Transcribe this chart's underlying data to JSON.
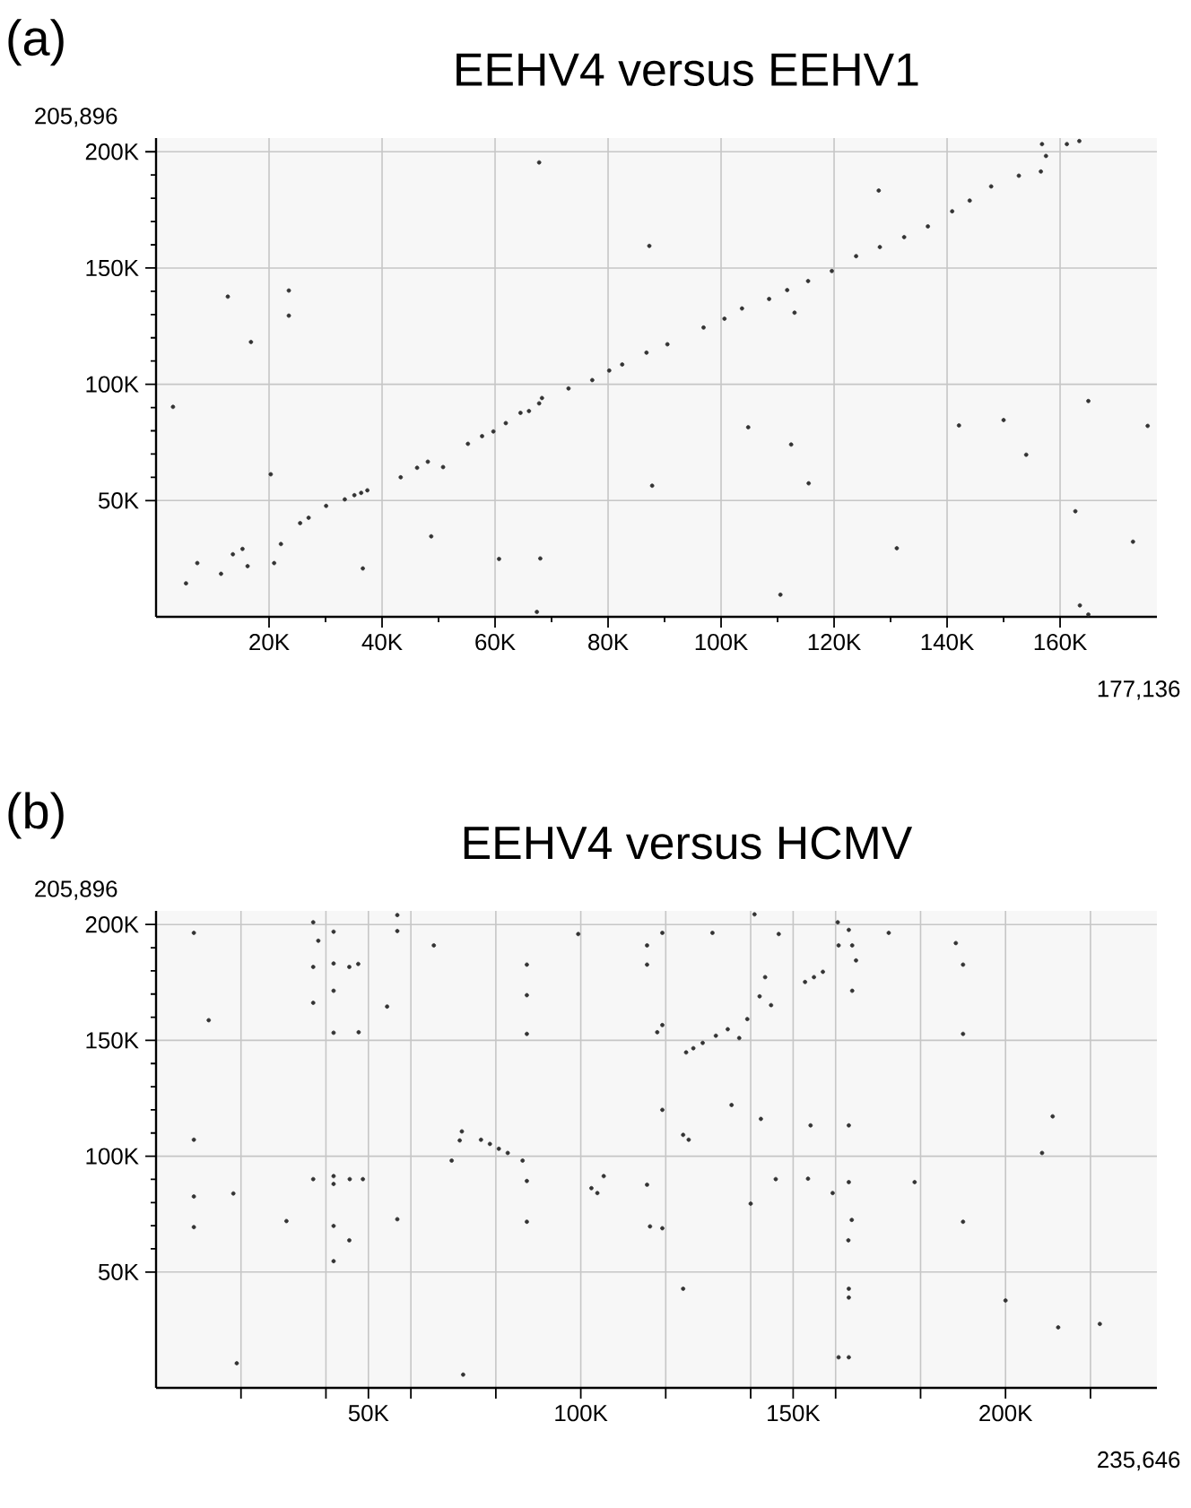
{
  "chart_data": [
    {
      "type": "scatter",
      "title": "EEHV4 versus EEHV1",
      "annotations": [
        "(a)",
        "177,136",
        "205,896"
      ],
      "color": "#333333",
      "marker": "circle",
      "grid": true,
      "xlim": [
        0,
        177136
      ],
      "ylim": [
        0,
        205896
      ],
      "xticks": [
        {
          "value": 20000,
          "label": "20K"
        },
        {
          "value": 40000,
          "label": "40K"
        },
        {
          "value": 60000,
          "label": "60K"
        },
        {
          "value": 80000,
          "label": "80K"
        },
        {
          "value": 100000,
          "label": "100K"
        },
        {
          "value": 120000,
          "label": "120K"
        },
        {
          "value": 140000,
          "label": "140K"
        },
        {
          "value": 160000,
          "label": "160K"
        }
      ],
      "yticks": [
        {
          "value": 50000,
          "label": "50K"
        },
        {
          "value": 100000,
          "label": "100K"
        },
        {
          "value": 150000,
          "label": "150K"
        },
        {
          "value": 200000,
          "label": "200K"
        }
      ],
      "x": [
        3000,
        12700,
        16800,
        23500,
        23500,
        20300,
        5300,
        7300,
        11500,
        13600,
        15300,
        16200,
        20900,
        22100,
        25500,
        27000,
        30100,
        33400,
        35100,
        36300,
        37400,
        36600,
        43300,
        46200,
        48100,
        48700,
        50800,
        55200,
        57700,
        59700,
        61900,
        64500,
        66000,
        67800,
        68300,
        73000,
        77200,
        80200,
        60700,
        68000,
        67400,
        67800,
        82500,
        86800,
        90500,
        96900,
        100600,
        103700,
        108500,
        111700,
        115400,
        119600,
        123900,
        128100,
        132400,
        136600,
        140900,
        144000,
        147800,
        152700,
        156600,
        157500,
        156800,
        161200,
        163400,
        87300,
        87800,
        127900,
        113000,
        104800,
        112400,
        115500,
        110500,
        131100,
        142100,
        150000,
        154000,
        165000,
        175500,
        162700,
        172900,
        163500,
        165000
      ],
      "values": [
        90300,
        137700,
        118200,
        140300,
        129500,
        61300,
        14400,
        23100,
        18500,
        26900,
        29200,
        21800,
        23100,
        31300,
        40300,
        42600,
        47700,
        50500,
        52300,
        53300,
        54400,
        20800,
        60000,
        64100,
        66700,
        34600,
        64400,
        74400,
        77700,
        79700,
        83300,
        87700,
        88500,
        91800,
        94100,
        98200,
        101800,
        105900,
        24900,
        25100,
        2100,
        195400,
        108500,
        113600,
        117200,
        124400,
        128200,
        132600,
        136700,
        140500,
        144400,
        148700,
        155100,
        159000,
        163300,
        167900,
        174400,
        179000,
        185100,
        189700,
        191500,
        198200,
        203300,
        203300,
        204600,
        159500,
        56400,
        183300,
        130800,
        81500,
        74100,
        57400,
        9500,
        29500,
        82300,
        84600,
        69700,
        92800,
        82100,
        45400,
        32300,
        4900,
        1000
      ]
    },
    {
      "type": "scatter",
      "title": "EEHV4 versus HCMV",
      "annotations": [
        "(b)",
        "235,646",
        "205,896"
      ],
      "color": "#333333",
      "marker": "circle",
      "grid": true,
      "xlim": [
        0,
        235646
      ],
      "ylim": [
        0,
        205896
      ],
      "xticks": [
        {
          "value": 20000,
          "label": null
        },
        {
          "value": 40000,
          "label": null
        },
        {
          "value": 50000,
          "label": "50K"
        },
        {
          "value": 60000,
          "label": null
        },
        {
          "value": 80000,
          "label": null
        },
        {
          "value": 100000,
          "label": "100K"
        },
        {
          "value": 120000,
          "label": null
        },
        {
          "value": 140000,
          "label": null
        },
        {
          "value": 150000,
          "label": "150K"
        },
        {
          "value": 160000,
          "label": null
        },
        {
          "value": 180000,
          "label": null
        },
        {
          "value": 200000,
          "label": "200K"
        },
        {
          "value": 220000,
          "label": null
        }
      ],
      "yticks": [
        {
          "value": 50000,
          "label": "50K"
        },
        {
          "value": 100000,
          "label": "100K"
        },
        {
          "value": 150000,
          "label": "150K"
        },
        {
          "value": 200000,
          "label": "200K"
        }
      ],
      "x": [
        8900,
        12400,
        8900,
        8900,
        8900,
        18200,
        19000,
        30700,
        37000,
        38200,
        37000,
        37000,
        37000,
        41800,
        41800,
        41800,
        41800,
        41800,
        41800,
        41800,
        41800,
        45500,
        47600,
        47700,
        45600,
        48700,
        45500,
        54400,
        56800,
        56800,
        56800,
        65400,
        69600,
        71500,
        72000,
        72300,
        76500,
        78600,
        80700,
        82800,
        86300,
        87300,
        87300,
        87300,
        87300,
        87300,
        99400,
        102500,
        103900,
        105400,
        115600,
        115600,
        115600,
        116300,
        119200,
        119200,
        118000,
        119200,
        119200,
        124100,
        125400,
        124100,
        124800,
        126500,
        128700,
        131800,
        134600,
        131000,
        135500,
        137300,
        139200,
        140000,
        140900,
        142100,
        142400,
        143400,
        144800,
        145900,
        146600,
        152800,
        154900,
        157000,
        153500,
        154100,
        159300,
        160500,
        160700,
        160700,
        163100,
        163900,
        164800,
        163900,
        163100,
        163100,
        163800,
        163000,
        163100,
        163100,
        163100,
        172500,
        178600,
        188300,
        190000,
        190000,
        190000,
        200000,
        208600,
        211100,
        212400,
        222200
      ],
      "values": [
        196400,
        158700,
        107100,
        82600,
        69400,
        83900,
        10600,
        72000,
        201000,
        193000,
        181700,
        166200,
        90100,
        196900,
        183200,
        171400,
        153300,
        91400,
        88000,
        69900,
        54700,
        181700,
        183000,
        153500,
        90100,
        90100,
        63700,
        164600,
        204100,
        197200,
        72800,
        191000,
        98100,
        106800,
        110700,
        5700,
        107100,
        105300,
        103200,
        101400,
        98100,
        182700,
        169500,
        152800,
        89300,
        71700,
        195900,
        86200,
        84100,
        91400,
        191000,
        182700,
        87700,
        69700,
        196400,
        156600,
        153500,
        120000,
        68900,
        109200,
        107100,
        42800,
        144800,
        146600,
        148900,
        152000,
        154800,
        196400,
        122100,
        151000,
        159200,
        79500,
        204400,
        169000,
        116100,
        177300,
        165200,
        90100,
        195900,
        175200,
        177300,
        179600,
        90300,
        113300,
        84100,
        201000,
        191000,
        13200,
        197700,
        191000,
        184500,
        171400,
        113300,
        88800,
        72500,
        63700,
        42800,
        39000,
        13200,
        196400,
        88800,
        192000,
        182700,
        152800,
        71700,
        37700,
        101400,
        117200,
        26100,
        27600
      ]
    }
  ]
}
